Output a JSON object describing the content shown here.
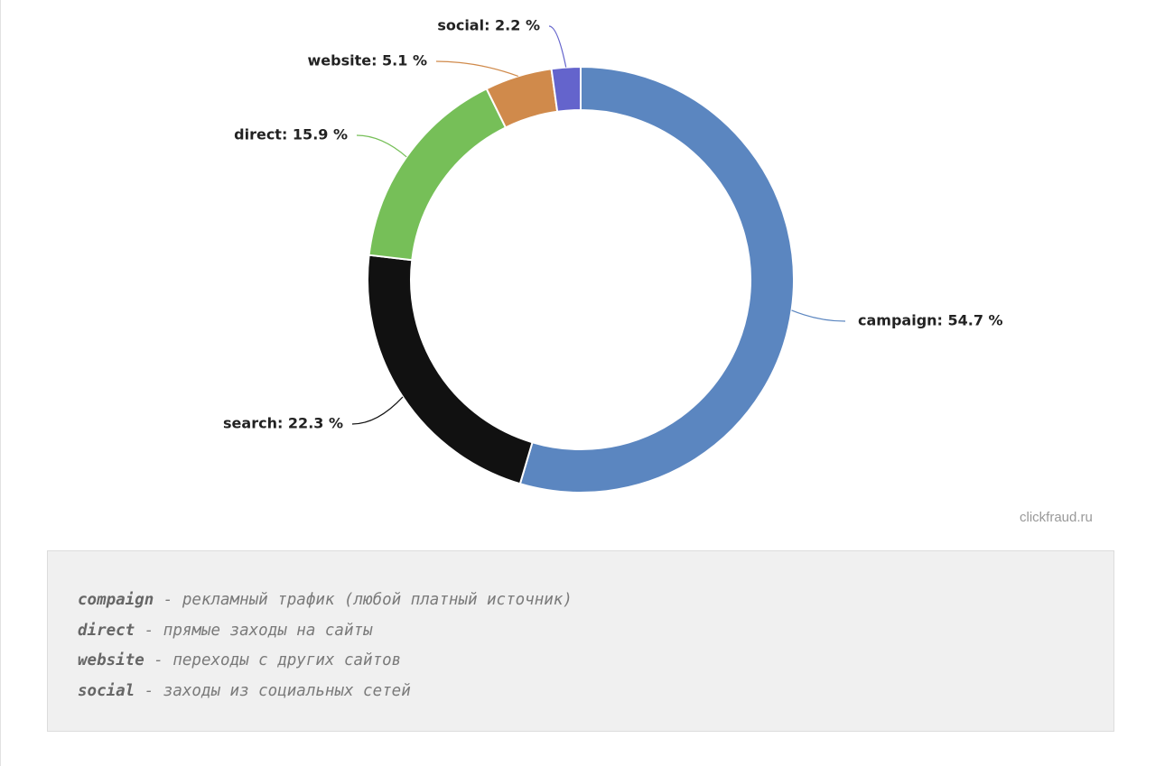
{
  "chart_data": {
    "type": "pie",
    "donut": true,
    "values": [
      54.7,
      22.3,
      15.9,
      5.1,
      2.2
    ],
    "value_labels": [
      "campaign: 54.7 %",
      "search: 22.3 %",
      "direct: 15.9 %",
      "website: 5.1 %",
      "social: 2.2 %"
    ],
    "colors": [
      "#5b86c0",
      "#111111",
      "#76bf58",
      "#d08a4b",
      "#6464cc"
    ]
  },
  "watermark": "clickfraud.ru",
  "notes": [
    {
      "term": "compaign",
      "description": "- рекламный трафик (любой платный источник)"
    },
    {
      "term": "direct",
      "description": "- прямые заходы на сайты"
    },
    {
      "term": "website",
      "description": "- переходы с других сайтов"
    },
    {
      "term": "social",
      "description": "- заходы из социальных сетей"
    }
  ]
}
